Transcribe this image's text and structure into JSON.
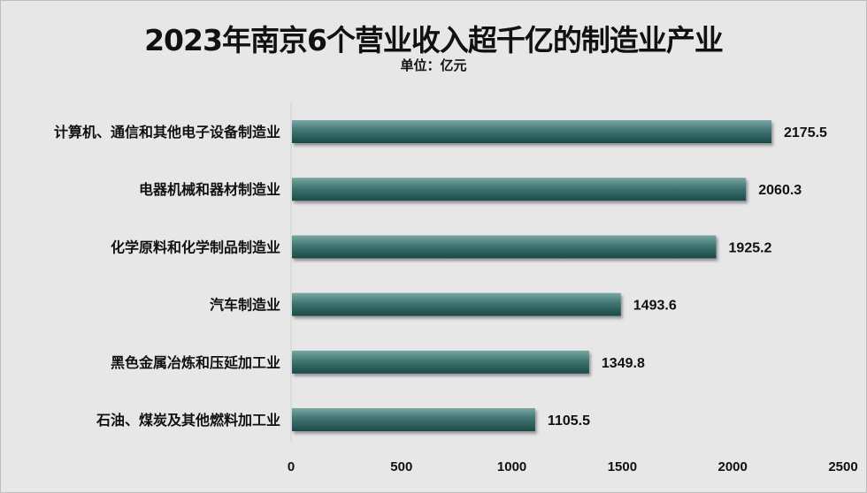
{
  "chart_data": {
    "type": "bar",
    "orientation": "horizontal",
    "title": "2023年南京6个营业收入超千亿的制造业产业",
    "subtitle": "单位：亿元",
    "categories": [
      "计算机、通信和其他电子设备制造业",
      "电器机械和器材制造业",
      "化学原料和化学制品制造业",
      "汽车制造业",
      "黑色金属冶炼和压延加工业",
      "石油、煤炭及其他燃料加工业"
    ],
    "values": [
      2175.5,
      2060.3,
      1925.2,
      1493.6,
      1349.8,
      1105.5
    ],
    "value_labels": [
      "2175.5",
      "2060.3",
      "1925.2",
      "1493.6",
      "1349.8",
      "1105.5"
    ],
    "xlim": [
      0,
      2500
    ],
    "xticks": [
      "0",
      "500",
      "1000",
      "1500",
      "2000",
      "2500"
    ],
    "grid": false,
    "bar_color": "#2b5e5c"
  }
}
